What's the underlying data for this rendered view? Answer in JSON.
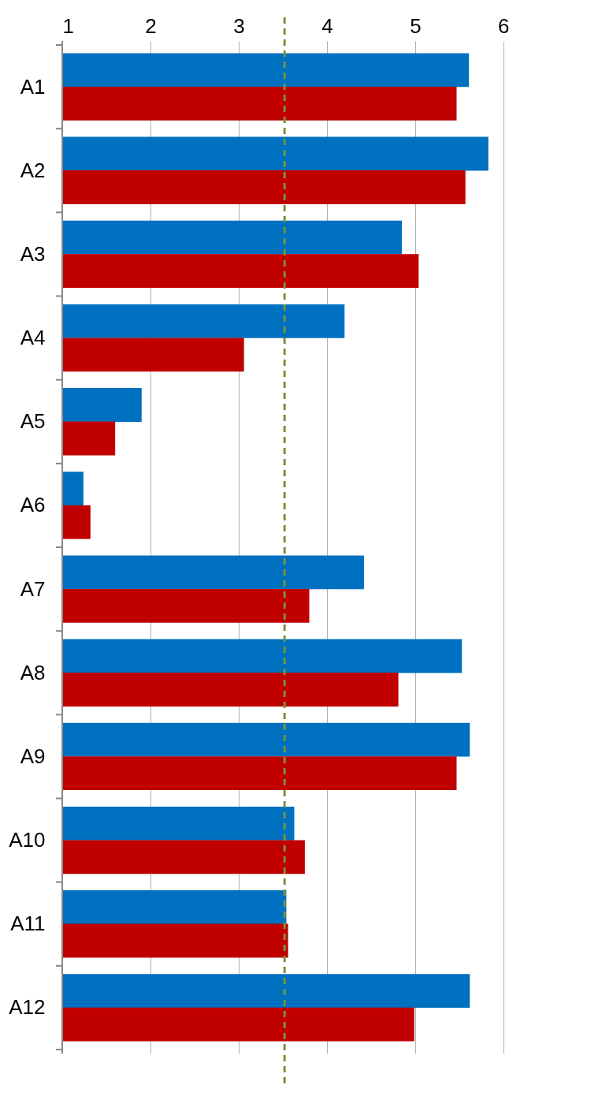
{
  "chart_data": {
    "type": "bar",
    "orientation": "horizontal",
    "categories": [
      "A1",
      "A2",
      "A3",
      "A4",
      "A5",
      "A6",
      "A7",
      "A8",
      "A9",
      "A10",
      "A11",
      "A12"
    ],
    "series": [
      {
        "color": "#0070c0",
        "values": [
          5.61,
          5.83,
          4.85,
          4.2,
          1.9,
          1.24,
          4.42,
          5.53,
          5.62,
          3.63,
          3.54,
          5.62
        ]
      },
      {
        "color": "#c00000",
        "values": [
          5.47,
          5.57,
          5.04,
          3.06,
          1.6,
          1.32,
          3.8,
          4.81,
          5.47,
          3.75,
          3.56,
          4.99
        ]
      }
    ],
    "xlim": [
      1,
      6.85
    ],
    "xticks": [
      1,
      2,
      3,
      4,
      5,
      6
    ],
    "grid": "x",
    "ref_lines": [
      {
        "axis": "x",
        "value": 3.52,
        "color": "#77933c",
        "line_style": "dashed"
      }
    ]
  }
}
